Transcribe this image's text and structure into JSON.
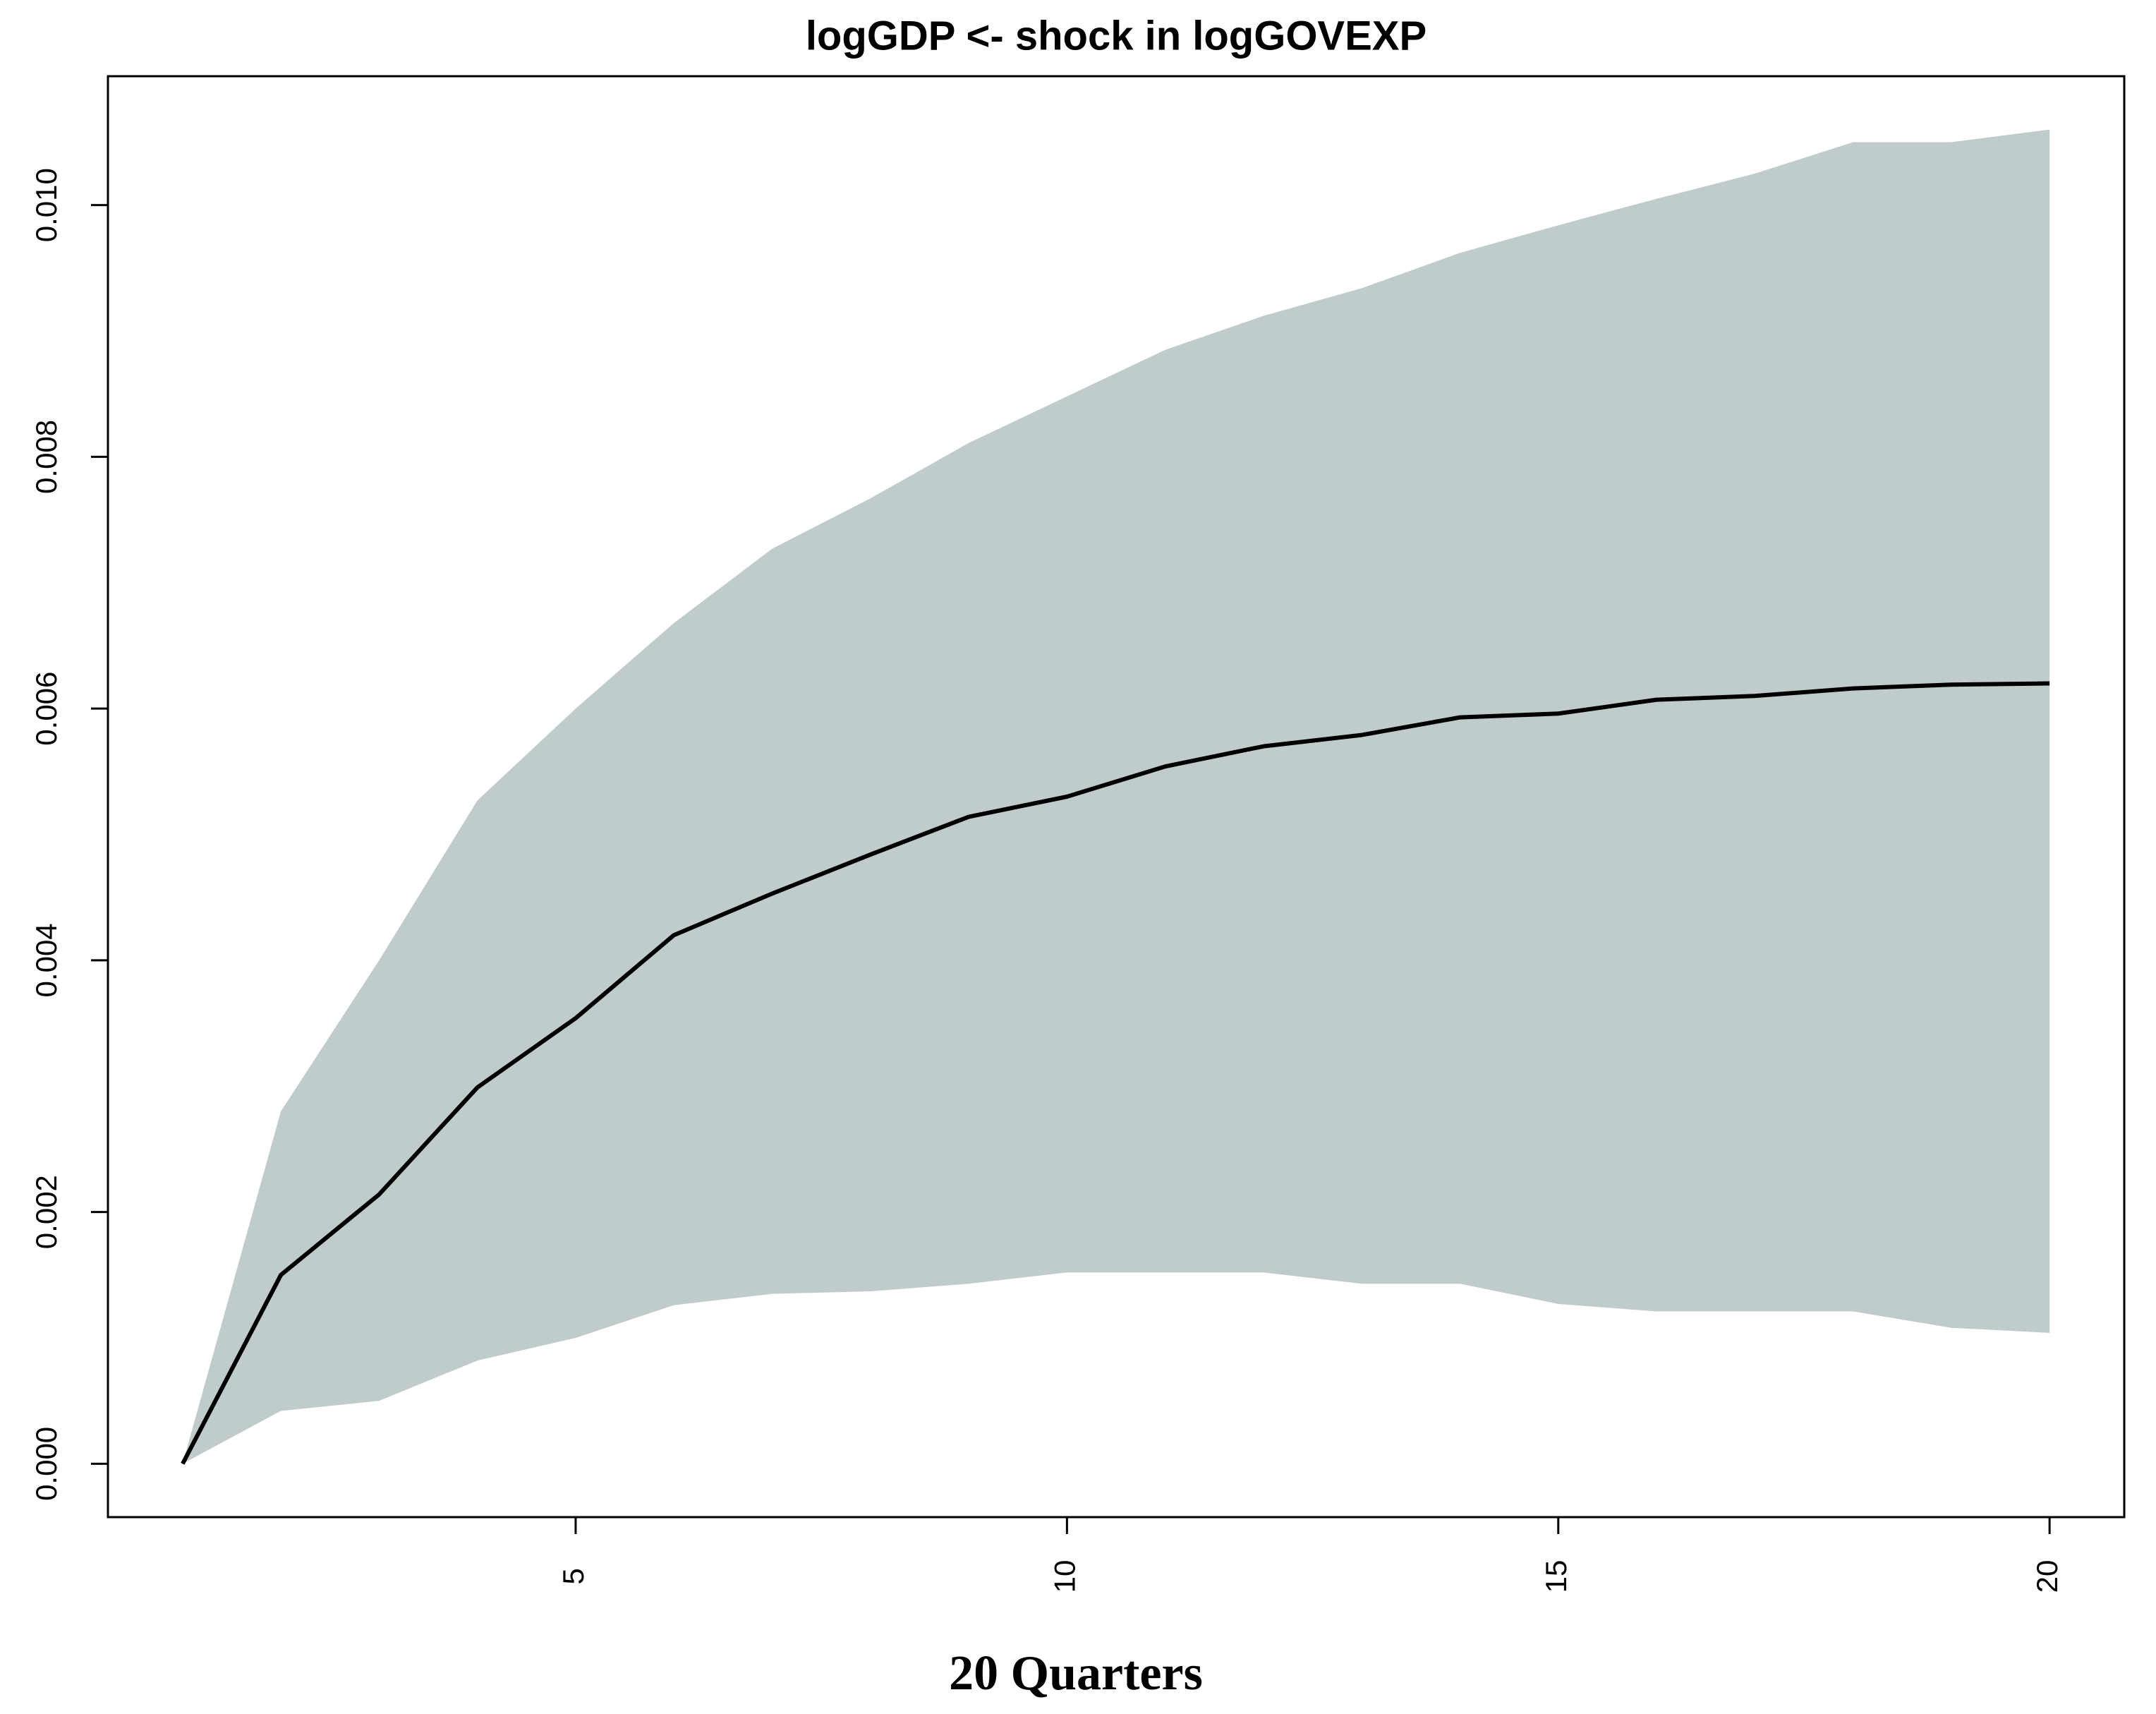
{
  "chart_data": {
    "type": "line",
    "title": "logGDP <- shock in logGOVEXP",
    "xlabel": "20 Quarters",
    "x": [
      1,
      2,
      3,
      4,
      5,
      6,
      7,
      8,
      9,
      10,
      11,
      12,
      13,
      14,
      15,
      16,
      17,
      18,
      19,
      20
    ],
    "series": [
      {
        "color": "#000000",
        "band_color": "#bfcccb",
        "values": [
          0,
          0.0015,
          0.00214,
          0.00299,
          0.00354,
          0.0042,
          0.00453,
          0.00484,
          0.00514,
          0.0053,
          0.00554,
          0.0057,
          0.00579,
          0.00593,
          0.00596,
          0.00607,
          0.0061,
          0.00616,
          0.00619,
          0.0062
        ],
        "upper": [
          0,
          0.0028,
          0.004,
          0.00527,
          0.006,
          0.00668,
          0.00727,
          0.00767,
          0.00811,
          0.00848,
          0.00885,
          0.00912,
          0.00934,
          0.00962,
          0.00984,
          0.01005,
          0.01025,
          0.0105,
          0.0105,
          0.0106
        ],
        "lower": [
          0,
          0.00042,
          0.0005,
          0.00082,
          0.001,
          0.00126,
          0.00135,
          0.00137,
          0.00143,
          0.00152,
          0.00152,
          0.00152,
          0.00143,
          0.00143,
          0.00127,
          0.00121,
          0.00121,
          0.00121,
          0.00108,
          0.00104
        ]
      }
    ],
    "xlim": [
      0.24,
      20.76
    ],
    "xticks": [
      5,
      10,
      15,
      20
    ],
    "ylim": [
      -0.000424,
      0.011024
    ],
    "yticks": [
      {
        "value": 0,
        "label": "0.000"
      },
      0.002,
      0.004,
      0.006,
      0.008,
      {
        "value": 0.01,
        "label": "0.010"
      }
    ],
    "grid": false
  }
}
